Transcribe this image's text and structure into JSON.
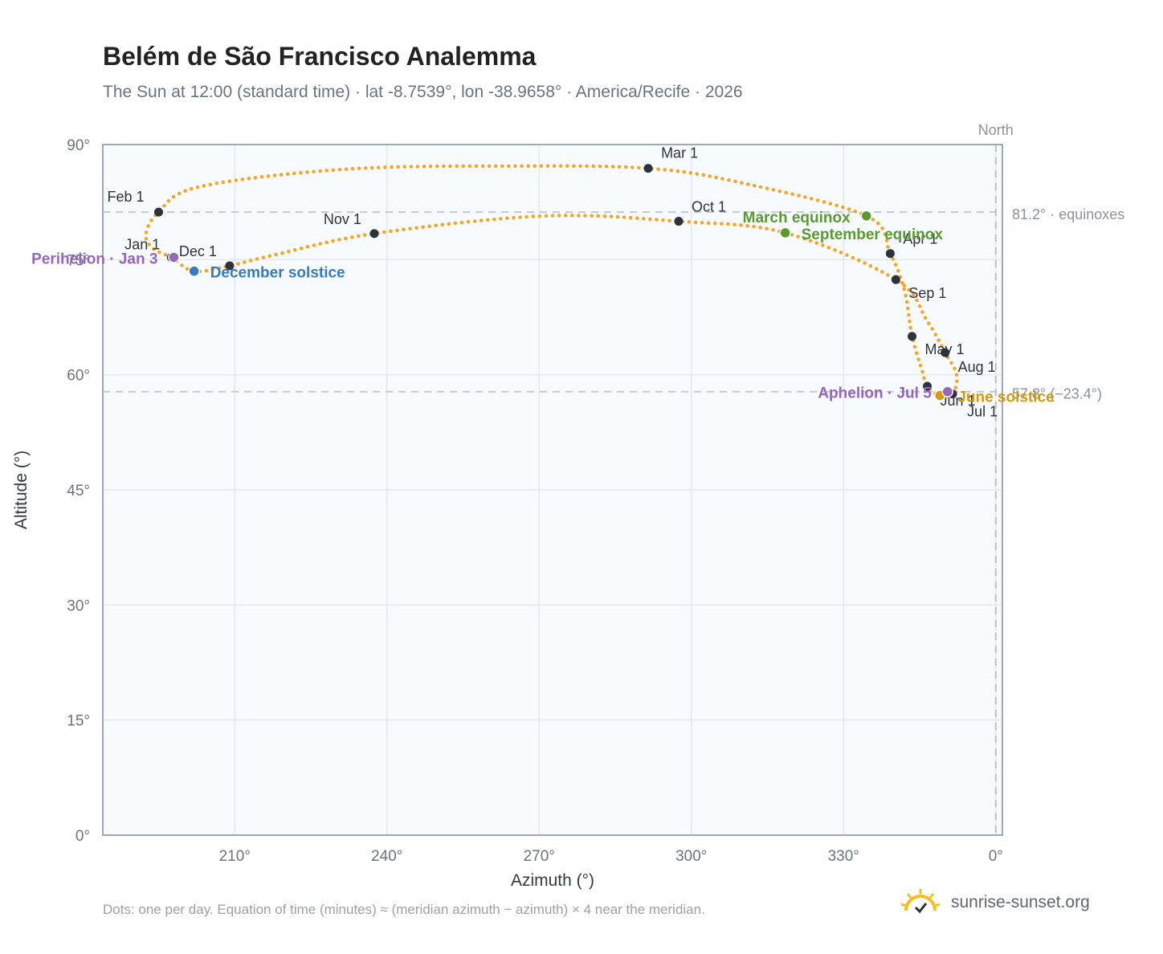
{
  "header": {
    "title": "Belém de São Francisco Analemma",
    "subtitle": "The Sun at 12:00 (standard time) · lat -8.7539°, lon -38.9658° · America/Recife · 2026"
  },
  "footer": {
    "note": "Dots: one per day. Equation of time (minutes) ≈ (meridian azimuth − azimuth) × 4 near the meridian.",
    "brand": "sunrise-sunset.org"
  },
  "colors": {
    "curve": "#f5a623",
    "month_marker": "#2d333b",
    "equinox": "#5a9a32",
    "december_solstice": "#3a7bbf",
    "june_solstice": "#d49a10",
    "apsis": "#9467bd",
    "plot_bg": "#f8fbfe",
    "grid": "#e3e8ee",
    "axis": "#a0a8b3"
  },
  "chart_data": {
    "type": "scatter",
    "title": "Belém de São Francisco Analemma",
    "xlabel": "Azimuth (°)",
    "ylabel": "Altitude (°)",
    "xlim": [
      184,
      1.3
    ],
    "ylim": [
      0,
      90
    ],
    "x_axis_note": "azimuth wraps past 360° to 0° (North)",
    "x_ticks": [
      {
        "value": 210,
        "label": "210°"
      },
      {
        "value": 240,
        "label": "240°"
      },
      {
        "value": 270,
        "label": "270°"
      },
      {
        "value": 300,
        "label": "300°"
      },
      {
        "value": 330,
        "label": "330°"
      },
      {
        "value": 0,
        "label": "0°"
      }
    ],
    "y_ticks": [
      {
        "value": 0,
        "label": "0°"
      },
      {
        "value": 15,
        "label": "15°"
      },
      {
        "value": 30,
        "label": "30°"
      },
      {
        "value": 45,
        "label": "45°"
      },
      {
        "value": 60,
        "label": "60°"
      },
      {
        "value": 75,
        "label": "75°"
      },
      {
        "value": 90,
        "label": "90°"
      }
    ],
    "grid": true,
    "north_line": {
      "azimuth": 0,
      "label": "North"
    },
    "reference_lines": [
      {
        "altitude": 81.2,
        "label": "81.2° · equinoxes"
      },
      {
        "altitude": 57.8,
        "label": "57.8° (−23.4°)"
      }
    ],
    "path_points": [
      {
        "date": "Jan 1",
        "az": 197.5,
        "alt": 75.3
      },
      {
        "date": "Jan 10",
        "az": 194.0,
        "alt": 76.4
      },
      {
        "date": "Jan 20",
        "az": 192.5,
        "alt": 78.3
      },
      {
        "date": "Feb 1",
        "az": 195.0,
        "alt": 81.2
      },
      {
        "date": "Feb 10",
        "az": 203.0,
        "alt": 84.5
      },
      {
        "date": "Feb 20",
        "az": 232.0,
        "alt": 86.8
      },
      {
        "date": "Feb 25",
        "az": 265.0,
        "alt": 87.2
      },
      {
        "date": "Mar 1",
        "az": 291.5,
        "alt": 86.9
      },
      {
        "date": "Mar 10",
        "az": 310.0,
        "alt": 85.0
      },
      {
        "date": "Mar 20",
        "az": 334.5,
        "alt": 80.7
      },
      {
        "date": "Apr 1",
        "az": 339.2,
        "alt": 75.8
      },
      {
        "date": "Apr 15",
        "az": 342.0,
        "alt": 71.0
      },
      {
        "date": "May 1",
        "az": 343.5,
        "alt": 65.0
      },
      {
        "date": "May 20",
        "az": 345.5,
        "alt": 60.5
      },
      {
        "date": "Jun 1",
        "az": 346.5,
        "alt": 58.5
      },
      {
        "date": "Jun 21",
        "az": 349.0,
        "alt": 57.3
      },
      {
        "date": "Jul 1",
        "az": 351.5,
        "alt": 57.5
      },
      {
        "date": "Jul 15",
        "az": 352.3,
        "alt": 60.0
      },
      {
        "date": "Aug 1",
        "az": 350.0,
        "alt": 62.9
      },
      {
        "date": "Aug 15",
        "az": 346.5,
        "alt": 67.0
      },
      {
        "date": "Sep 1",
        "az": 340.3,
        "alt": 72.4
      },
      {
        "date": "Sep 22",
        "az": 318.5,
        "alt": 78.5
      },
      {
        "date": "Oct 1",
        "az": 297.5,
        "alt": 80.0
      },
      {
        "date": "Oct 15",
        "az": 271.0,
        "alt": 80.7
      },
      {
        "date": "Nov 1",
        "az": 237.5,
        "alt": 78.4
      },
      {
        "date": "Nov 15",
        "az": 217.0,
        "alt": 75.5
      },
      {
        "date": "Dec 1",
        "az": 209.0,
        "alt": 74.2
      },
      {
        "date": "Dec 21",
        "az": 202.0,
        "alt": 73.5
      },
      {
        "date": "Jan 1",
        "az": 197.5,
        "alt": 75.3
      }
    ],
    "month_markers": [
      {
        "label": "Jan 1",
        "az": 197.5,
        "alt": 75.3,
        "anchor": "end",
        "dx": -14,
        "dy": -10
      },
      {
        "label": "Feb 1",
        "az": 195.0,
        "alt": 81.2,
        "anchor": "end",
        "dx": -18,
        "dy": -13
      },
      {
        "label": "Mar 1",
        "az": 291.5,
        "alt": 86.9,
        "anchor": "start",
        "dx": 16,
        "dy": -13
      },
      {
        "label": "Apr 1",
        "az": 339.2,
        "alt": 75.8,
        "anchor": "start",
        "dx": 16,
        "dy": -12
      },
      {
        "label": "May 1",
        "az": 343.5,
        "alt": 65.0,
        "anchor": "start",
        "dx": 16,
        "dy": 22
      },
      {
        "label": "Jun 1",
        "az": 346.5,
        "alt": 58.5,
        "anchor": "start",
        "dx": 16,
        "dy": 24
      },
      {
        "label": "Jul 1",
        "az": 351.5,
        "alt": 57.5,
        "anchor": "start",
        "dx": 18,
        "dy": 28
      },
      {
        "label": "Aug 1",
        "az": 350.0,
        "alt": 62.9,
        "anchor": "start",
        "dx": 16,
        "dy": 24
      },
      {
        "label": "Sep 1",
        "az": 340.3,
        "alt": 72.4,
        "anchor": "start",
        "dx": 16,
        "dy": 23
      },
      {
        "label": "Oct 1",
        "az": 297.5,
        "alt": 80.0,
        "anchor": "start",
        "dx": 16,
        "dy": -12
      },
      {
        "label": "Nov 1",
        "az": 237.5,
        "alt": 78.4,
        "anchor": "end",
        "dx": -16,
        "dy": -12
      },
      {
        "label": "Dec 1",
        "az": 209.0,
        "alt": 74.2,
        "anchor": "end",
        "dx": -16,
        "dy": -12
      }
    ],
    "events": [
      {
        "label": "March equinox",
        "az": 334.5,
        "alt": 80.7,
        "color_key": "equinox",
        "anchor": "end",
        "dx": -20,
        "dy": 8
      },
      {
        "label": "September equinox",
        "az": 318.5,
        "alt": 78.5,
        "color_key": "equinox",
        "anchor": "start",
        "dx": 20,
        "dy": 8
      },
      {
        "label": "December solstice",
        "az": 202.0,
        "alt": 73.5,
        "color_key": "december_solstice",
        "anchor": "start",
        "dx": 20,
        "dy": 8
      },
      {
        "label": "June solstice",
        "az": 349.0,
        "alt": 57.3,
        "color_key": "june_solstice",
        "anchor": "start",
        "dx": 22,
        "dy": 8
      },
      {
        "label": "Perihelion · Jan 3",
        "az": 198.0,
        "alt": 75.3,
        "color_key": "apsis",
        "anchor": "end",
        "dx": -20,
        "dy": 8
      },
      {
        "label": "Aphelion · Jul 5",
        "az": 350.5,
        "alt": 57.8,
        "color_key": "apsis",
        "anchor": "end",
        "dx": -20,
        "dy": 8
      }
    ]
  }
}
